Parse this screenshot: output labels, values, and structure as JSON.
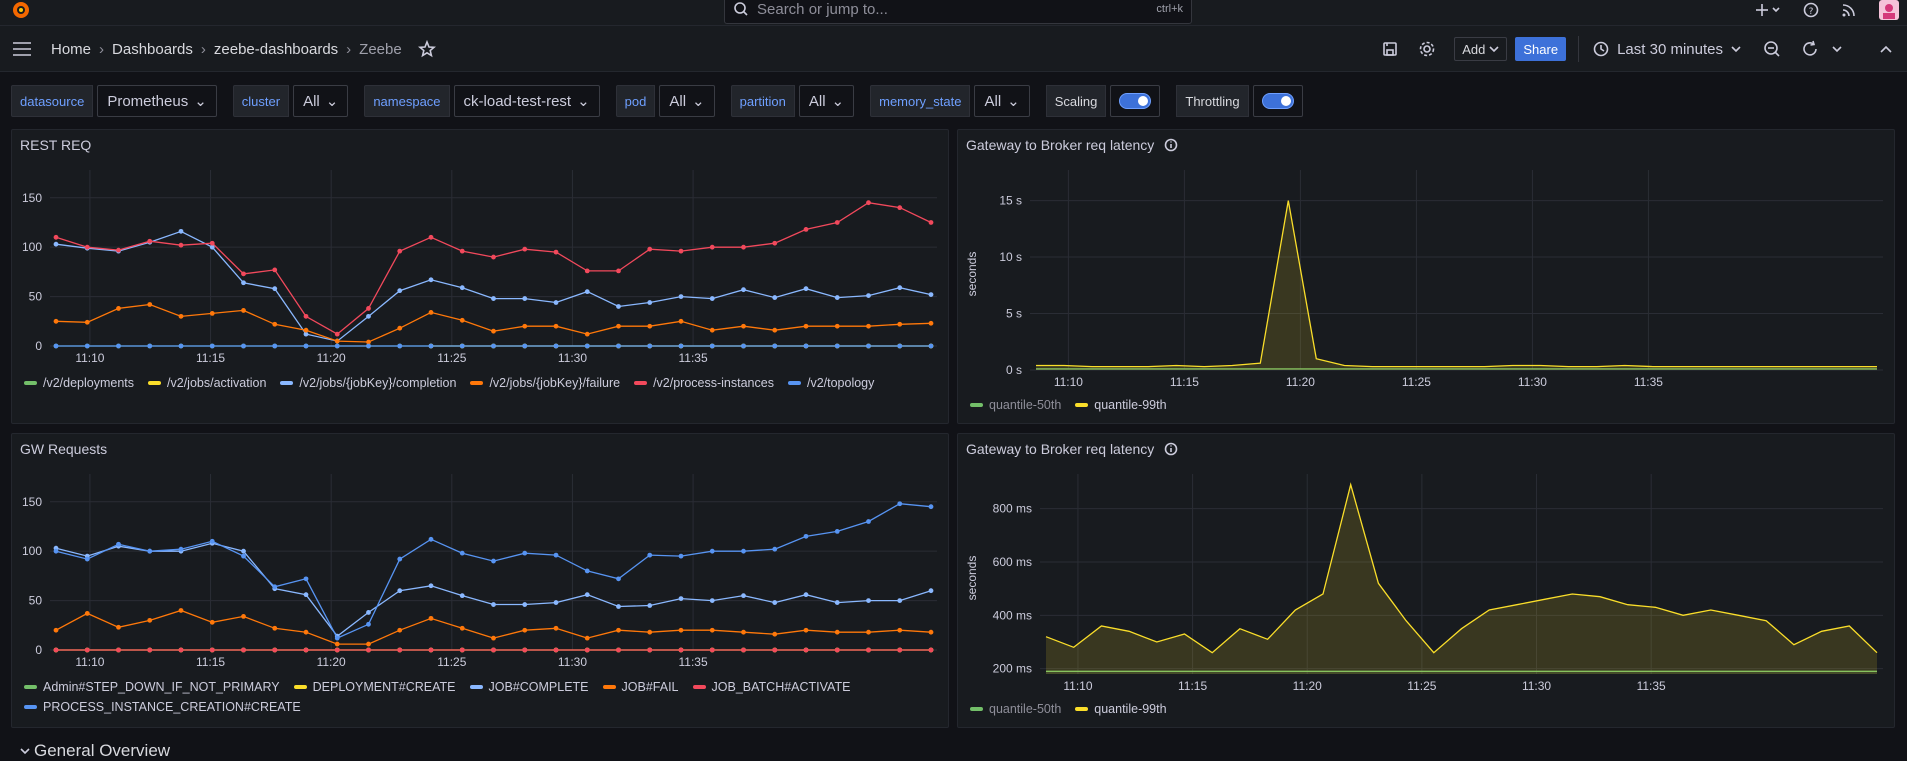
{
  "top": {
    "search_placeholder": "Search or jump to...",
    "search_shortcut": "ctrl+k"
  },
  "breadcrumb": [
    "Home",
    "Dashboards",
    "zeebe-dashboards",
    "Zeebe"
  ],
  "toolbar": {
    "add_label": "Add",
    "share_label": "Share",
    "time_range": "Last 30 minutes"
  },
  "variables": [
    {
      "label": "datasource",
      "value": "Prometheus"
    },
    {
      "label": "cluster",
      "value": "All"
    },
    {
      "label": "namespace",
      "value": "ck-load-test-rest"
    },
    {
      "label": "pod",
      "value": "All"
    },
    {
      "label": "partition",
      "value": "All"
    },
    {
      "label": "memory_state",
      "value": "All"
    }
  ],
  "toggles": [
    {
      "label": "Scaling",
      "on": true
    },
    {
      "label": "Throttling",
      "on": true
    }
  ],
  "section_title": "General Overview",
  "colors": {
    "green": "#73bf69",
    "yellow": "#fade2a",
    "lightblue": "#8ab8ff",
    "orange": "#ff780a",
    "red": "#f2495c",
    "blue": "#5794f2"
  },
  "chart_data": [
    {
      "type": "line",
      "title": "REST REQ",
      "x": [
        "11:09",
        "11:10",
        "11:11",
        "11:12",
        "11:13",
        "11:14",
        "11:15",
        "11:16",
        "11:17",
        "11:18",
        "11:19",
        "11:20",
        "11:21",
        "11:22",
        "11:23",
        "11:24",
        "11:25",
        "11:26",
        "11:27",
        "11:28",
        "11:29",
        "11:30",
        "11:31",
        "11:32",
        "11:33",
        "11:34",
        "11:35",
        "11:36",
        "11:37"
      ],
      "x_ticks": [
        "11:10",
        "11:15",
        "11:20",
        "11:25",
        "11:30",
        "11:35"
      ],
      "y_ticks": [
        "0",
        "50",
        "100",
        "150"
      ],
      "ylim": [
        0,
        170
      ],
      "series": [
        {
          "name": "/v2/deployments",
          "color": "#73bf69",
          "values": [
            0,
            0,
            0,
            0,
            0,
            0,
            0,
            0,
            0,
            0,
            0,
            0,
            0,
            0,
            0,
            0,
            0,
            0,
            0,
            0,
            0,
            0,
            0,
            0,
            0,
            0,
            0,
            0,
            0
          ]
        },
        {
          "name": "/v2/jobs/activation",
          "color": "#fade2a",
          "values": [
            null,
            null,
            null,
            null,
            null,
            null,
            null,
            null,
            null,
            null,
            null,
            null,
            0,
            0,
            0,
            0,
            0,
            0,
            0,
            0,
            0,
            0,
            0,
            0,
            0,
            0,
            0,
            0,
            0
          ]
        },
        {
          "name": "/v2/jobs/{jobKey}/completion",
          "color": "#8ab8ff",
          "values": [
            103,
            99,
            96,
            105,
            116,
            100,
            64,
            58,
            12,
            5,
            30,
            56,
            67,
            59,
            48,
            48,
            44,
            55,
            40,
            44,
            50,
            48,
            57,
            49,
            58,
            49,
            51,
            59,
            52
          ]
        },
        {
          "name": "/v2/jobs/{jobKey}/failure",
          "color": "#ff780a",
          "values": [
            25,
            24,
            38,
            42,
            30,
            33,
            36,
            22,
            16,
            5,
            4,
            18,
            34,
            26,
            15,
            20,
            20,
            12,
            20,
            20,
            25,
            16,
            20,
            16,
            20,
            20,
            20,
            22,
            23
          ]
        },
        {
          "name": "/v2/process-instances",
          "color": "#f2495c",
          "values": [
            110,
            100,
            97,
            106,
            102,
            104,
            73,
            77,
            30,
            12,
            38,
            96,
            110,
            96,
            90,
            98,
            95,
            76,
            76,
            98,
            96,
            100,
            100,
            104,
            118,
            125,
            145,
            140,
            125
          ]
        },
        {
          "name": "/v2/topology",
          "color": "#5794f2",
          "values": [
            0,
            0,
            0,
            0,
            0,
            0,
            0,
            0,
            0,
            0,
            0,
            0,
            0,
            0,
            0,
            0,
            0,
            0,
            0,
            0,
            0,
            0,
            0,
            0,
            0,
            0,
            0,
            0,
            0
          ]
        }
      ]
    },
    {
      "type": "area",
      "title": "Gateway to Broker req latency",
      "ylabel": "seconds",
      "x_ticks": [
        "11:10",
        "11:15",
        "11:20",
        "11:25",
        "11:30",
        "11:35"
      ],
      "y_ticks": [
        "0 s",
        "5 s",
        "10 s",
        "15 s"
      ],
      "ylim": [
        0,
        17
      ],
      "series": [
        {
          "name": "quantile-50th",
          "color": "#73bf69",
          "values": [
            0.1,
            0.1,
            0.1,
            0.1,
            0.1,
            0.1,
            0.1,
            0.1,
            0.1,
            0.1,
            0.1,
            0.1,
            0.1,
            0.1,
            0.1,
            0.1,
            0.1,
            0.1,
            0.1,
            0.1,
            0.1,
            0.1,
            0.1,
            0.1,
            0.1,
            0.1,
            0.1,
            0.1,
            0.1,
            0.1,
            0.1
          ]
        },
        {
          "name": "quantile-99th",
          "color": "#fade2a",
          "values": [
            0.4,
            0.4,
            0.3,
            0.3,
            0.3,
            0.4,
            0.3,
            0.4,
            0.6,
            15,
            1.0,
            0.4,
            0.3,
            0.3,
            0.3,
            0.3,
            0.3,
            0.4,
            0.4,
            0.3,
            0.3,
            0.4,
            0.3,
            0.3,
            0.3,
            0.3,
            0.3,
            0.3,
            0.3,
            0.3,
            0.3
          ]
        }
      ]
    },
    {
      "type": "line",
      "title": "GW Requests",
      "x_ticks": [
        "11:10",
        "11:15",
        "11:20",
        "11:25",
        "11:30",
        "11:35"
      ],
      "y_ticks": [
        "0",
        "50",
        "100",
        "150"
      ],
      "ylim": [
        0,
        170
      ],
      "series": [
        {
          "name": "Admin#STEP_DOWN_IF_NOT_PRIMARY",
          "color": "#73bf69",
          "values": [
            0,
            0,
            0,
            0,
            0,
            0,
            0,
            0,
            0,
            0,
            0,
            0,
            0,
            0,
            0,
            0,
            0,
            0,
            0,
            0,
            0,
            0,
            0,
            0,
            0,
            0,
            0,
            0,
            0
          ]
        },
        {
          "name": "DEPLOYMENT#CREATE",
          "color": "#fade2a",
          "values": [
            0,
            0,
            0,
            0,
            0,
            0,
            0,
            0,
            0,
            0,
            0,
            0,
            0,
            0,
            0,
            0,
            0,
            0,
            0,
            0,
            0,
            0,
            0,
            0,
            0,
            0,
            0,
            0,
            0
          ]
        },
        {
          "name": "JOB#COMPLETE",
          "color": "#8ab8ff",
          "values": [
            103,
            95,
            105,
            100,
            100,
            108,
            100,
            62,
            56,
            14,
            38,
            60,
            65,
            55,
            46,
            46,
            48,
            56,
            44,
            45,
            52,
            50,
            55,
            48,
            56,
            48,
            50,
            50,
            60
          ]
        },
        {
          "name": "JOB#FAIL",
          "color": "#ff780a",
          "values": [
            20,
            37,
            23,
            30,
            40,
            28,
            34,
            22,
            18,
            6,
            6,
            20,
            32,
            22,
            12,
            20,
            22,
            12,
            20,
            18,
            20,
            20,
            18,
            16,
            20,
            18,
            18,
            20,
            18
          ]
        },
        {
          "name": "JOB_BATCH#ACTIVATE",
          "color": "#f2495c",
          "values": [
            0,
            0,
            0,
            0,
            0,
            0,
            0,
            0,
            0,
            0,
            0,
            0,
            0,
            0,
            0,
            0,
            0,
            0,
            0,
            0,
            0,
            0,
            0,
            0,
            0,
            0,
            0,
            0,
            0
          ]
        },
        {
          "name": "PROCESS_INSTANCE_CREATION#CREATE",
          "color": "#5794f2",
          "values": [
            100,
            92,
            107,
            100,
            102,
            110,
            95,
            64,
            72,
            12,
            26,
            92,
            112,
            98,
            90,
            98,
            96,
            80,
            72,
            96,
            95,
            100,
            100,
            102,
            115,
            120,
            130,
            148,
            145
          ]
        }
      ]
    },
    {
      "type": "area",
      "title": "Gateway to Broker req latency",
      "ylabel": "seconds",
      "x_ticks": [
        "11:10",
        "11:15",
        "11:20",
        "11:25",
        "11:30",
        "11:35"
      ],
      "y_ticks": [
        "200 ms",
        "400 ms",
        "600 ms",
        "800 ms"
      ],
      "ylim": [
        180,
        900
      ],
      "series": [
        {
          "name": "quantile-50th",
          "color": "#73bf69",
          "values": [
            190,
            190,
            190,
            190,
            190,
            190,
            190,
            190,
            190,
            190,
            190,
            190,
            190,
            190,
            190,
            190,
            190,
            190,
            190,
            190,
            190,
            190,
            190,
            190,
            190,
            190,
            190,
            190,
            190,
            190,
            190
          ]
        },
        {
          "name": "quantile-99th",
          "color": "#fade2a",
          "values": [
            320,
            280,
            360,
            340,
            300,
            330,
            260,
            350,
            310,
            420,
            480,
            890,
            520,
            380,
            260,
            350,
            420,
            440,
            460,
            480,
            470,
            440,
            430,
            400,
            420,
            400,
            380,
            290,
            340,
            360,
            260
          ]
        }
      ]
    }
  ]
}
